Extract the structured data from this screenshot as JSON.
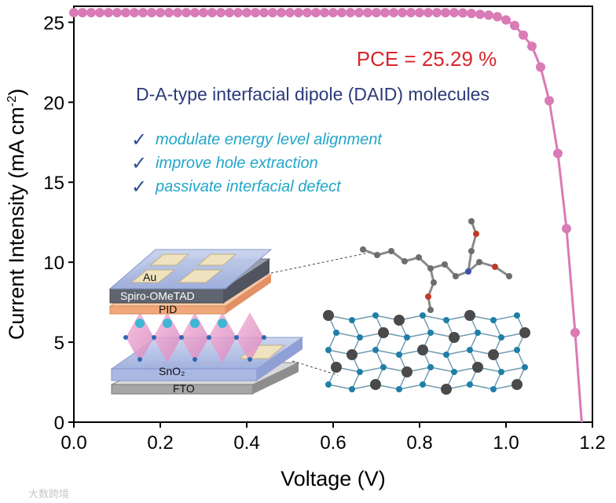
{
  "chart_data": {
    "type": "line",
    "title": "",
    "xlabel": "Voltage (V)",
    "ylabel_main": "Current Intensity (mA cm",
    "ylabel_sup": "-2",
    "ylabel_close": ")",
    "xlim": [
      0.0,
      1.2
    ],
    "ylim": [
      0,
      26
    ],
    "xticks": [
      "0.0",
      "0.2",
      "0.4",
      "0.6",
      "0.8",
      "1.0",
      "1.2"
    ],
    "yticks": [
      "0",
      "5",
      "10",
      "15",
      "20",
      "25"
    ],
    "series": [
      {
        "name": "J-V",
        "color": "#d97bb6",
        "x": [
          0.0,
          0.02,
          0.04,
          0.06,
          0.08,
          0.1,
          0.12,
          0.14,
          0.16,
          0.18,
          0.2,
          0.22,
          0.24,
          0.26,
          0.28,
          0.3,
          0.32,
          0.34,
          0.36,
          0.38,
          0.4,
          0.42,
          0.44,
          0.46,
          0.48,
          0.5,
          0.52,
          0.54,
          0.56,
          0.58,
          0.6,
          0.62,
          0.64,
          0.66,
          0.68,
          0.7,
          0.72,
          0.74,
          0.76,
          0.78,
          0.8,
          0.82,
          0.84,
          0.86,
          0.88,
          0.9,
          0.92,
          0.94,
          0.96,
          0.98,
          1.0,
          1.02,
          1.04,
          1.06,
          1.08,
          1.1,
          1.12,
          1.14,
          1.16
        ],
        "y": [
          25.6,
          25.6,
          25.6,
          25.6,
          25.6,
          25.6,
          25.6,
          25.6,
          25.6,
          25.6,
          25.6,
          25.6,
          25.6,
          25.6,
          25.6,
          25.6,
          25.6,
          25.6,
          25.6,
          25.6,
          25.6,
          25.6,
          25.6,
          25.6,
          25.6,
          25.6,
          25.6,
          25.6,
          25.6,
          25.6,
          25.6,
          25.6,
          25.6,
          25.6,
          25.6,
          25.6,
          25.6,
          25.6,
          25.6,
          25.6,
          25.6,
          25.6,
          25.6,
          25.6,
          25.6,
          25.58,
          25.55,
          25.5,
          25.45,
          25.35,
          25.15,
          24.8,
          24.2,
          23.5,
          22.2,
          20.1,
          16.8,
          12.1,
          5.6
        ]
      }
    ],
    "curve_end": {
      "x": 1.175,
      "y": 0
    },
    "annotations": {
      "pce": "PCE = 25.29 %",
      "headline": "D-A-type interfacial dipole (DAID) molecules",
      "bullets": [
        "modulate energy level alignment",
        "improve hole extraction",
        "passivate interfacial defect"
      ],
      "check_glyph": "✓"
    },
    "device_layers": {
      "top": "Au",
      "htl": "Spiro-OMeTAD",
      "interlayer": "PID",
      "etl": "SnO₂",
      "substrate": "FTO"
    }
  },
  "watermark": "大数跨境",
  "colors": {
    "curve": "#d97bb6",
    "pce": "#d8262b",
    "headline": "#2b3a7a",
    "bullet": "#22a6c9",
    "check": "#2b4f8f"
  }
}
